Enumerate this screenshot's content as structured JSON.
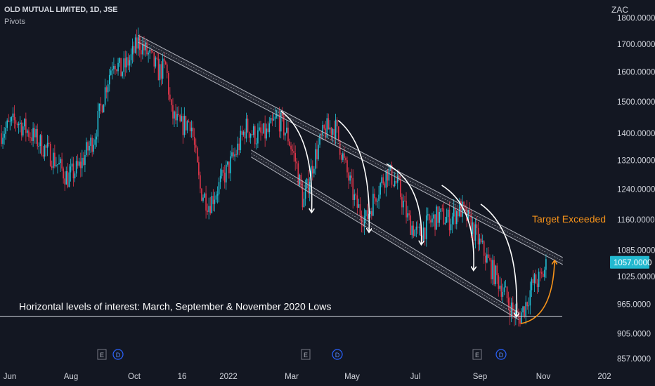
{
  "header": {
    "symbol_line": "OLD MUTUAL LIMITED, 1D, JSE",
    "indicator": "Pivots",
    "currency": "ZAC"
  },
  "annotations": {
    "horizontal_note": "Horizontal levels of interest: March, September & November 2020 Lows",
    "target_note": "Target Exceeded",
    "event_markers": [
      "E",
      "D",
      "E",
      "D",
      "E",
      "D"
    ]
  },
  "colors": {
    "background": "#131722",
    "up": "#26a69a",
    "down": "#ef5350",
    "up_bright": "#22c1d6",
    "down_bright": "#e0364a",
    "channel": "#b2b5be",
    "arrow_white": "#ffffff",
    "target_orange": "#f7931a",
    "last_price_bg": "#22b8cf"
  },
  "chart_data": {
    "type": "candlestick",
    "x_ticks": [
      "Jun",
      "Aug",
      "Oct",
      "16",
      "2022",
      "Mar",
      "May",
      "Jul",
      "Sep",
      "Nov",
      "202"
    ],
    "y_ticks": [
      857.0,
      905.0,
      965.0,
      1025.0,
      1085.0,
      1160.0,
      1240.0,
      1320.0,
      1400.0,
      1500.0,
      1600.0,
      1700.0,
      1800.0
    ],
    "y_tick_labels": [
      "857.0000",
      "905.0000",
      "965.0000",
      "1025.0000",
      "1085.0000",
      "1160.0000",
      "1240.0000",
      "1320.0000",
      "1400.0000",
      "1500.0000",
      "1600.0000",
      "1700.0000",
      "1800.0000"
    ],
    "y_scale": "log",
    "last_price": 1057.0,
    "last_price_label": "1057.0000",
    "horizontal_level": 940,
    "x_range": [
      "2021-05-20",
      "2022-12-31"
    ],
    "price_path": [
      [
        "2021-05-20",
        1400
      ],
      [
        "2021-06-05",
        1440
      ],
      [
        "2021-06-25",
        1380
      ],
      [
        "2021-07-10",
        1330
      ],
      [
        "2021-07-25",
        1270
      ],
      [
        "2021-08-05",
        1300
      ],
      [
        "2021-08-20",
        1390
      ],
      [
        "2021-09-01",
        1560
      ],
      [
        "2021-09-08",
        1650
      ],
      [
        "2021-09-15",
        1600
      ],
      [
        "2021-09-25",
        1650
      ],
      [
        "2021-10-02",
        1710
      ],
      [
        "2021-10-12",
        1660
      ],
      [
        "2021-10-22",
        1600
      ],
      [
        "2021-10-29",
        1620
      ],
      [
        "2021-11-03",
        1460
      ],
      [
        "2021-11-12",
        1420
      ],
      [
        "2021-11-22",
        1440
      ],
      [
        "2021-12-01",
        1240
      ],
      [
        "2021-12-10",
        1200
      ],
      [
        "2021-12-20",
        1250
      ],
      [
        "2022-01-05",
        1340
      ],
      [
        "2022-01-15",
        1420
      ],
      [
        "2022-01-25",
        1390
      ],
      [
        "2022-02-05",
        1400
      ],
      [
        "2022-02-15",
        1450
      ],
      [
        "2022-02-25",
        1390
      ],
      [
        "2022-03-05",
        1310
      ],
      [
        "2022-03-12",
        1200
      ],
      [
        "2022-03-22",
        1320
      ],
      [
        "2022-04-02",
        1410
      ],
      [
        "2022-04-12",
        1420
      ],
      [
        "2022-04-22",
        1300
      ],
      [
        "2022-05-02",
        1200
      ],
      [
        "2022-05-12",
        1160
      ],
      [
        "2022-05-22",
        1230
      ],
      [
        "2022-06-02",
        1290
      ],
      [
        "2022-06-12",
        1250
      ],
      [
        "2022-06-22",
        1160
      ],
      [
        "2022-07-02",
        1120
      ],
      [
        "2022-07-12",
        1150
      ],
      [
        "2022-07-22",
        1170
      ],
      [
        "2022-08-02",
        1160
      ],
      [
        "2022-08-12",
        1190
      ],
      [
        "2022-08-22",
        1150
      ],
      [
        "2022-09-02",
        1090
      ],
      [
        "2022-09-12",
        1040
      ],
      [
        "2022-09-22",
        1000
      ],
      [
        "2022-10-02",
        950
      ],
      [
        "2022-10-08",
        935
      ],
      [
        "2022-10-14",
        960
      ],
      [
        "2022-10-22",
        1010
      ],
      [
        "2022-10-30",
        1020
      ],
      [
        "2022-11-05",
        1057
      ]
    ],
    "channel": {
      "upper_start": [
        "2021-10-02",
        1720
      ],
      "upper_end": [
        "2022-11-20",
        1060
      ],
      "lower_start": [
        "2022-01-20",
        1340
      ],
      "lower_end": [
        "2022-10-08",
        940
      ]
    },
    "swing_arrows": [
      {
        "from": [
          "2022-02-18",
          1470
        ],
        "to": [
          "2022-03-20",
          1180
        ]
      },
      {
        "from": [
          "2022-04-15",
          1440
        ],
        "to": [
          "2022-05-15",
          1130
        ]
      },
      {
        "from": [
          "2022-06-01",
          1310
        ],
        "to": [
          "2022-07-05",
          1100
        ]
      },
      {
        "from": [
          "2022-07-25",
          1250
        ],
        "to": [
          "2022-08-25",
          1040
        ]
      },
      {
        "from": [
          "2022-09-01",
          1200
        ],
        "to": [
          "2022-10-06",
          940
        ]
      }
    ],
    "target_arrow": {
      "from": [
        "2022-10-10",
        925
      ],
      "to": [
        "2022-11-10",
        1060
      ]
    }
  }
}
